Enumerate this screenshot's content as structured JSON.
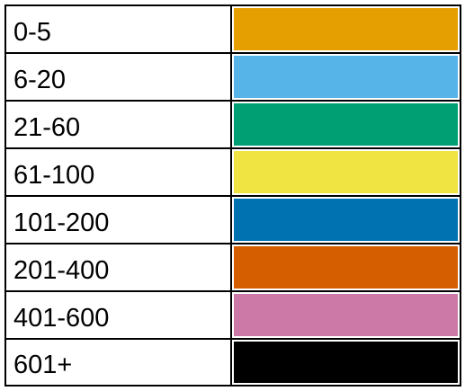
{
  "legend": {
    "rows": [
      {
        "label": "0-5",
        "color": "#E69F00"
      },
      {
        "label": "6-20",
        "color": "#56B4E9"
      },
      {
        "label": "21-60",
        "color": "#009E73"
      },
      {
        "label": "61-100",
        "color": "#F0E442"
      },
      {
        "label": "101-200",
        "color": "#0072B2"
      },
      {
        "label": "201-400",
        "color": "#D55E00"
      },
      {
        "label": "401-600",
        "color": "#CC79A7"
      },
      {
        "label": "601+",
        "color": "#000000"
      }
    ]
  }
}
